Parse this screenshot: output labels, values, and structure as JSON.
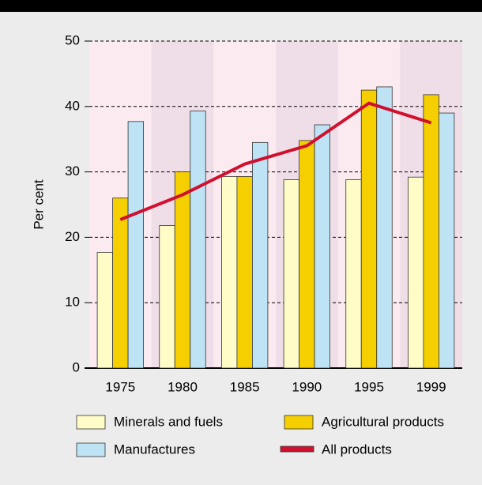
{
  "chart_data": {
    "type": "bar",
    "ylabel": "Per cent",
    "categories": [
      "1975",
      "1980",
      "1985",
      "1990",
      "1995",
      "1999"
    ],
    "series": [
      {
        "name": "Minerals and fuels",
        "color": "#fffcc8",
        "values": [
          17.7,
          21.8,
          29.3,
          28.8,
          28.8,
          29.2
        ]
      },
      {
        "name": "Agricultural products",
        "color": "#f5cf00",
        "values": [
          26,
          30,
          29.3,
          34.8,
          42.5,
          41.8
        ]
      },
      {
        "name": "Manufactures",
        "color": "#bde3f5",
        "values": [
          37.7,
          39.3,
          34.5,
          37.2,
          43,
          39
        ]
      },
      {
        "name": "All products",
        "color": "#d0102e",
        "type": "line",
        "values": [
          22.7,
          26.5,
          31.2,
          34,
          40.5,
          37.5
        ]
      }
    ],
    "ylim": [
      0,
      50
    ],
    "yticks": [
      0,
      10,
      20,
      30,
      40,
      50
    ],
    "grid": true,
    "band_colors": [
      "#fbeaf0",
      "#efdde8"
    ]
  }
}
